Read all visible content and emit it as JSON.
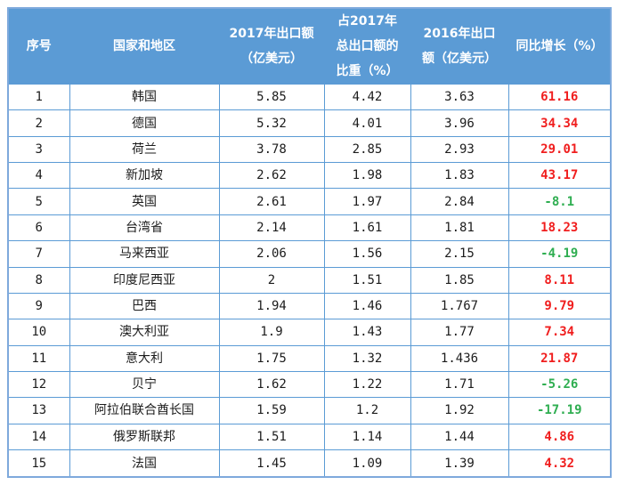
{
  "chart_data": {
    "type": "table",
    "title": "",
    "columns": [
      "序号",
      "国家和地区",
      "2017年出口额（亿美元）",
      "占2017年总出口额的比重（%）",
      "2016年出口额（亿美元）",
      "同比增长（%）"
    ],
    "rows": [
      [
        "1",
        "韩国",
        "5.85",
        "4.42",
        "3.63",
        "61.16"
      ],
      [
        "2",
        "德国",
        "5.32",
        "4.01",
        "3.96",
        "34.34"
      ],
      [
        "3",
        "荷兰",
        "3.78",
        "2.85",
        "2.93",
        "29.01"
      ],
      [
        "4",
        "新加坡",
        "2.62",
        "1.98",
        "1.83",
        "43.17"
      ],
      [
        "5",
        "英国",
        "2.61",
        "1.97",
        "2.84",
        "-8.1"
      ],
      [
        "6",
        "台湾省",
        "2.14",
        "1.61",
        "1.81",
        "18.23"
      ],
      [
        "7",
        "马来西亚",
        "2.06",
        "1.56",
        "2.15",
        "-4.19"
      ],
      [
        "8",
        "印度尼西亚",
        "2",
        "1.51",
        "1.85",
        "8.11"
      ],
      [
        "9",
        "巴西",
        "1.94",
        "1.46",
        "1.767",
        "9.79"
      ],
      [
        "10",
        "澳大利亚",
        "1.9",
        "1.43",
        "1.77",
        "7.34"
      ],
      [
        "11",
        "意大利",
        "1.75",
        "1.32",
        "1.436",
        "21.87"
      ],
      [
        "12",
        "贝宁",
        "1.62",
        "1.22",
        "1.71",
        "-5.26"
      ],
      [
        "13",
        "阿拉伯联合酋长国",
        "1.59",
        "1.2",
        "1.92",
        "-17.19"
      ],
      [
        "14",
        "俄罗斯联邦",
        "1.51",
        "1.14",
        "1.44",
        "4.86"
      ],
      [
        "15",
        "法国",
        "1.45",
        "1.09",
        "1.39",
        "4.32"
      ]
    ],
    "layout": {
      "grid": true,
      "growth_rule": "positive values shown red bold, negative values shown green bold"
    }
  },
  "colors": {
    "header_bg": "#5b9bd5",
    "grid_border": "#5b9bd5",
    "outer_border": "#7ea9dc",
    "growth_positive": "#f01e1e",
    "growth_negative": "#2fae51",
    "header_text": "#ffffff",
    "body_text": "#1c1c1c"
  }
}
